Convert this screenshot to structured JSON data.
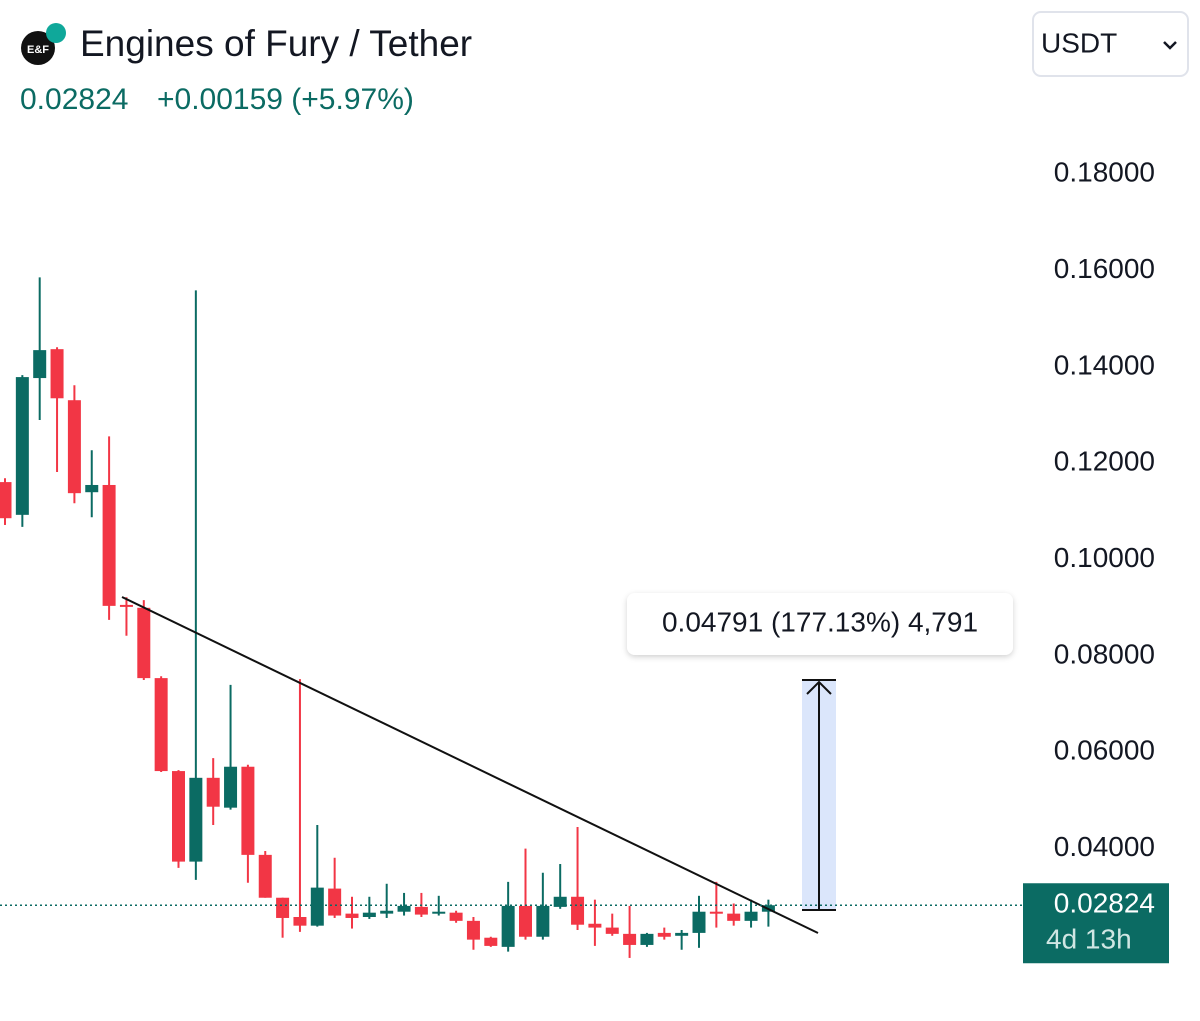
{
  "header": {
    "title": "Engines of Fury / Tether",
    "price": "0.02824",
    "change": "+0.00159 (+5.97%)",
    "quote_selector": "USDT"
  },
  "chart_data": {
    "type": "candlestick",
    "open": [
      0.1161,
      0.1093,
      0.1377,
      0.1437,
      0.1331,
      0.114,
      0.1155,
      0.0906,
      0.09,
      0.0754,
      0.0561,
      0.0373,
      0.0547,
      0.0485,
      0.057,
      0.0387,
      0.0298,
      0.0258,
      0.024,
      0.0317,
      0.0265,
      0.0258,
      0.0265,
      0.0269,
      0.0279,
      0.0265,
      0.0267,
      0.025,
      0.0215,
      0.0196,
      0.0281,
      0.0217,
      0.0279,
      0.03,
      0.0244,
      0.0236,
      0.0223,
      0.02,
      0.0225,
      0.0219,
      0.0225,
      0.0269,
      0.0265,
      0.025,
      0.0269
    ],
    "high": [
      0.1169,
      0.1383,
      0.1586,
      0.1441,
      0.1362,
      0.1227,
      0.1256,
      0.0922,
      0.0916,
      0.0758,
      0.0563,
      0.1559,
      0.0588,
      0.074,
      0.0574,
      0.0395,
      0.0298,
      0.0752,
      0.0449,
      0.0381,
      0.03,
      0.03,
      0.0327,
      0.0308,
      0.0308,
      0.0302,
      0.0271,
      0.0258,
      0.0217,
      0.0331,
      0.04,
      0.035,
      0.0368,
      0.0445,
      0.0294,
      0.0265,
      0.0281,
      0.0225,
      0.0236,
      0.0231,
      0.0302,
      0.0331,
      0.0286,
      0.0294,
      0.0294
    ],
    "low": [
      0.1072,
      0.1068,
      0.129,
      0.1182,
      0.1117,
      0.1088,
      0.0875,
      0.0842,
      0.075,
      0.0559,
      0.036,
      0.0335,
      0.0449,
      0.0481,
      0.0329,
      0.0298,
      0.0215,
      0.0227,
      0.0238,
      0.0256,
      0.0234,
      0.0254,
      0.0256,
      0.0261,
      0.0258,
      0.0261,
      0.0246,
      0.019,
      0.0196,
      0.0186,
      0.0211,
      0.0211,
      0.0275,
      0.0231,
      0.0198,
      0.0219,
      0.0173,
      0.0196,
      0.0211,
      0.019,
      0.0194,
      0.0236,
      0.024,
      0.0236,
      0.0238
    ],
    "close": [
      0.1086,
      0.1379,
      0.1435,
      0.1335,
      0.1138,
      0.1155,
      0.0904,
      0.0902,
      0.0754,
      0.0561,
      0.0373,
      0.0547,
      0.0487,
      0.057,
      0.0387,
      0.0298,
      0.0256,
      0.024,
      0.0319,
      0.0261,
      0.0256,
      0.0267,
      0.0271,
      0.0281,
      0.0263,
      0.0269,
      0.025,
      0.0211,
      0.0198,
      0.0281,
      0.0217,
      0.0281,
      0.03,
      0.0242,
      0.0236,
      0.0223,
      0.02,
      0.0223,
      0.0217,
      0.0225,
      0.0269,
      0.0267,
      0.025,
      0.0269,
      0.02824
    ],
    "colors": {
      "up": "#0b6b63",
      "down": "#f23645"
    },
    "ylim": [
      0.004,
      0.2
    ],
    "yticks": [
      {
        "value": 0.04,
        "label": "0.04000"
      },
      {
        "value": 0.06,
        "label": "0.06000"
      },
      {
        "value": 0.08,
        "label": "0.08000"
      },
      {
        "value": 0.1,
        "label": "0.10000"
      },
      {
        "value": 0.12,
        "label": "0.12000"
      },
      {
        "value": 0.14,
        "label": "0.14000"
      },
      {
        "value": 0.16,
        "label": "0.16000"
      },
      {
        "value": 0.18,
        "label": "0.18000"
      }
    ],
    "last_price": {
      "value": 0.02824,
      "label": "0.02824"
    },
    "countdown": "4d 13h",
    "measure_label": "0.04791 (177.13%) 4,791"
  }
}
